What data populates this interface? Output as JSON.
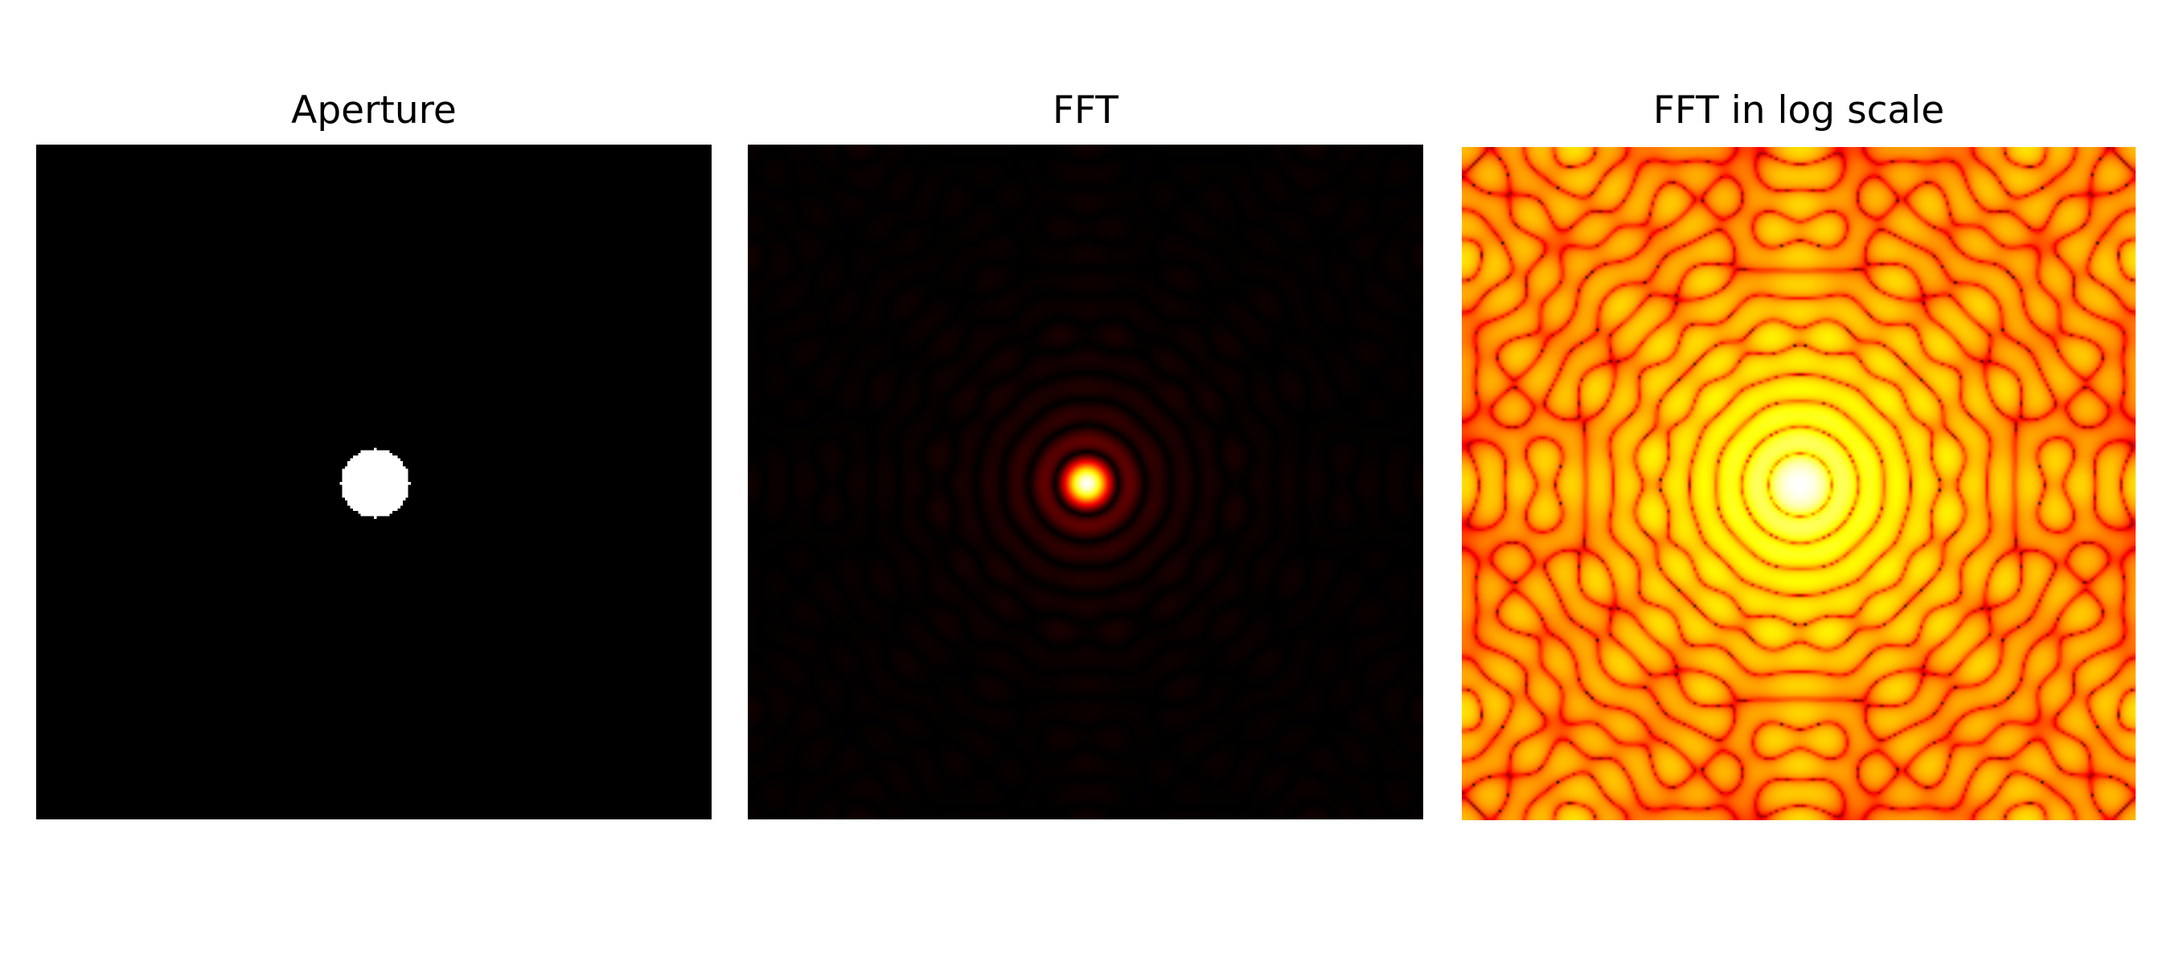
{
  "chart_data": [
    {
      "type": "heatmap",
      "title": "Aperture",
      "colormap": "gray",
      "grid": false,
      "axes_visible": false,
      "description_values": {
        "aperture_shape": "circle",
        "aperture_value": 1,
        "background_value": 0
      }
    },
    {
      "type": "heatmap",
      "title": "FFT",
      "colormap": "hot",
      "grid": false,
      "axes_visible": false
    },
    {
      "type": "heatmap",
      "title": "FFT in log scale",
      "colormap": "hot",
      "grid": false,
      "axes_visible": false
    }
  ]
}
